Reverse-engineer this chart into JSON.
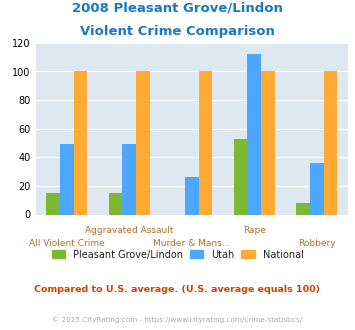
{
  "title_line1": "2008 Pleasant Grove/Lindon",
  "title_line2": "Violent Crime Comparison",
  "categories": [
    "All Violent Crime",
    "Aggravated Assault",
    "Murder & Mans...",
    "Rape",
    "Robbery"
  ],
  "series": {
    "Pleasant Grove/Lindon": [
      15,
      15,
      0,
      53,
      8
    ],
    "Utah": [
      49,
      49,
      26,
      112,
      36
    ],
    "National": [
      100,
      100,
      100,
      100,
      100
    ]
  },
  "colors": {
    "Pleasant Grove/Lindon": "#7cb832",
    "Utah": "#4da6ff",
    "National": "#ffaa33"
  },
  "ylim": [
    0,
    120
  ],
  "yticks": [
    0,
    20,
    40,
    60,
    80,
    100,
    120
  ],
  "background_color": "#dde8f0",
  "title_color": "#1a78c2",
  "xlabel_color": "#b07030",
  "footnote1": "Compared to U.S. average. (U.S. average equals 100)",
  "footnote2": "© 2025 CityRating.com - https://www.cityrating.com/crime-statistics/",
  "footnote1_color": "#cc4400",
  "footnote2_color": "#aaaaaa",
  "bar_width": 0.22
}
